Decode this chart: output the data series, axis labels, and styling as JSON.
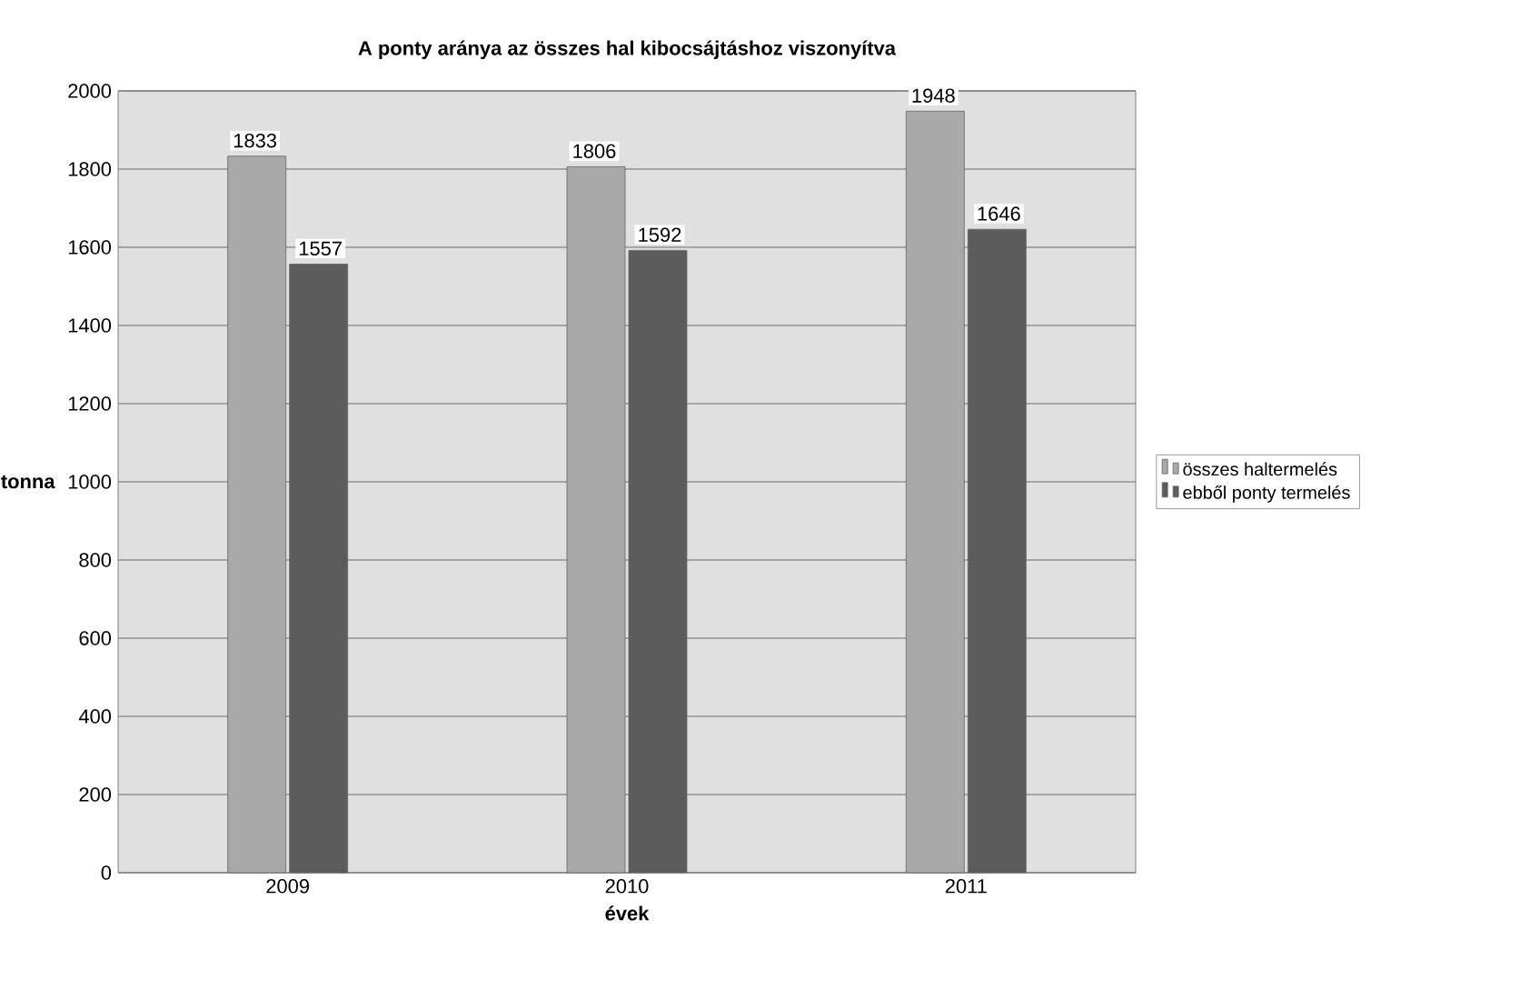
{
  "chart_data": {
    "type": "bar",
    "title": "A ponty aránya az összes hal kibocsájtáshoz viszonyítva",
    "xlabel": "évek",
    "ylabel": "tonna",
    "categories": [
      "2009",
      "2010",
      "2011"
    ],
    "series": [
      {
        "name": "összes haltermelés",
        "color": "#a9a9a9",
        "values": [
          1833,
          1806,
          1948
        ]
      },
      {
        "name": "ebből ponty termelés",
        "color": "#5c5c5c",
        "values": [
          1557,
          1592,
          1646
        ]
      }
    ],
    "ylim": [
      0,
      2000
    ],
    "yticks": [
      0,
      200,
      400,
      600,
      800,
      1000,
      1200,
      1400,
      1600,
      1800,
      2000
    ],
    "grid": "y",
    "legend": "right",
    "data_labels": true
  }
}
